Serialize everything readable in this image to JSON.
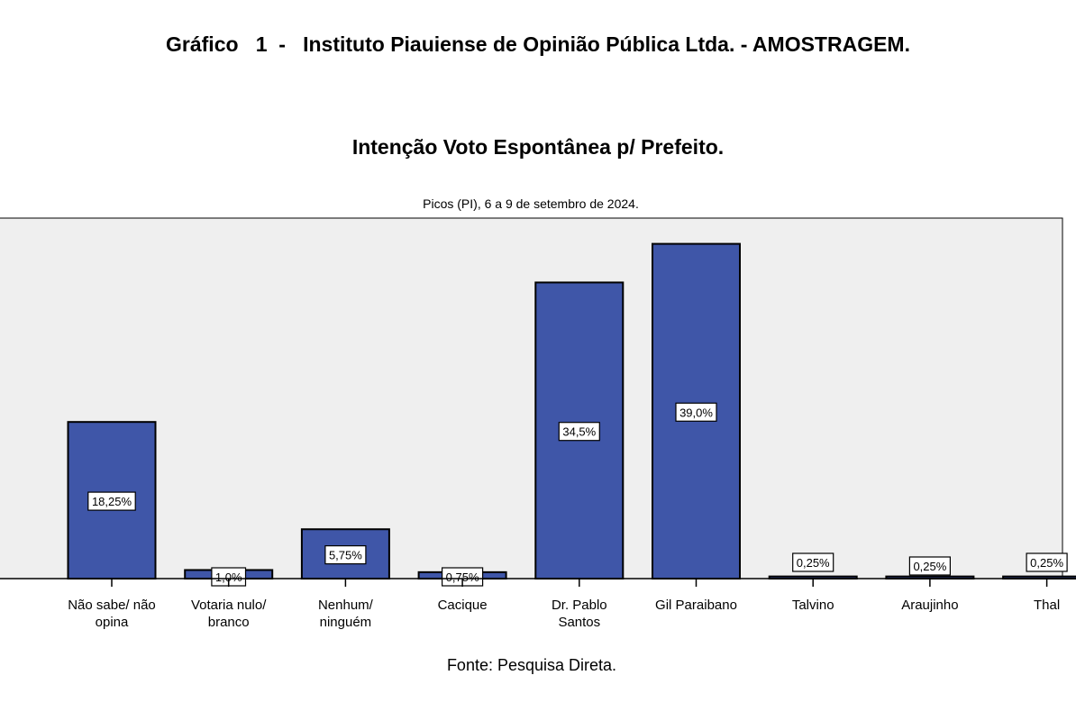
{
  "header": {
    "figure_heading": "Gráfico   1  -   Instituto Piauiense de Opinião Pública Ltda. - AMOSTRAGEM."
  },
  "footer": {
    "source": "Fonte: Pesquisa Direta."
  },
  "chart_data": {
    "type": "bar",
    "title": "Intenção Voto Espontânea p/ Prefeito.",
    "subtitle": "Picos (PI), 6 a 9 de setembro de 2024.",
    "xlabel": "",
    "ylabel": "",
    "ylim": [
      0,
      42
    ],
    "grid": false,
    "categories": [
      "Não sabe/ não opina",
      "Votaria nulo/ branco",
      "Nenhum/ ninguém",
      "Cacique",
      "Dr. Pablo Santos",
      "Gil Paraibano",
      "Talvino",
      "Araujinho",
      "Thal"
    ],
    "category_lines": [
      [
        "Não sabe/ não",
        "opina"
      ],
      [
        "Votaria nulo/",
        "branco"
      ],
      [
        "Nenhum/",
        "ninguém"
      ],
      [
        "Cacique"
      ],
      [
        "Dr. Pablo",
        "Santos"
      ],
      [
        "Gil Paraibano"
      ],
      [
        "Talvino"
      ],
      [
        "Araujinho"
      ],
      [
        "Thal"
      ]
    ],
    "values": [
      18.25,
      1.0,
      5.75,
      0.75,
      34.5,
      39.0,
      0.25,
      0.25,
      0.25
    ],
    "data_labels": [
      "18,25%",
      "1,0%",
      "5,75%",
      "0,75%",
      "34,5%",
      "39,0%",
      "0,25%",
      "0,25%",
      "0,25%"
    ],
    "colors": {
      "bar_fill": "#3f56a8",
      "bar_stroke": "#000000",
      "plot_background": "#efefef"
    }
  }
}
